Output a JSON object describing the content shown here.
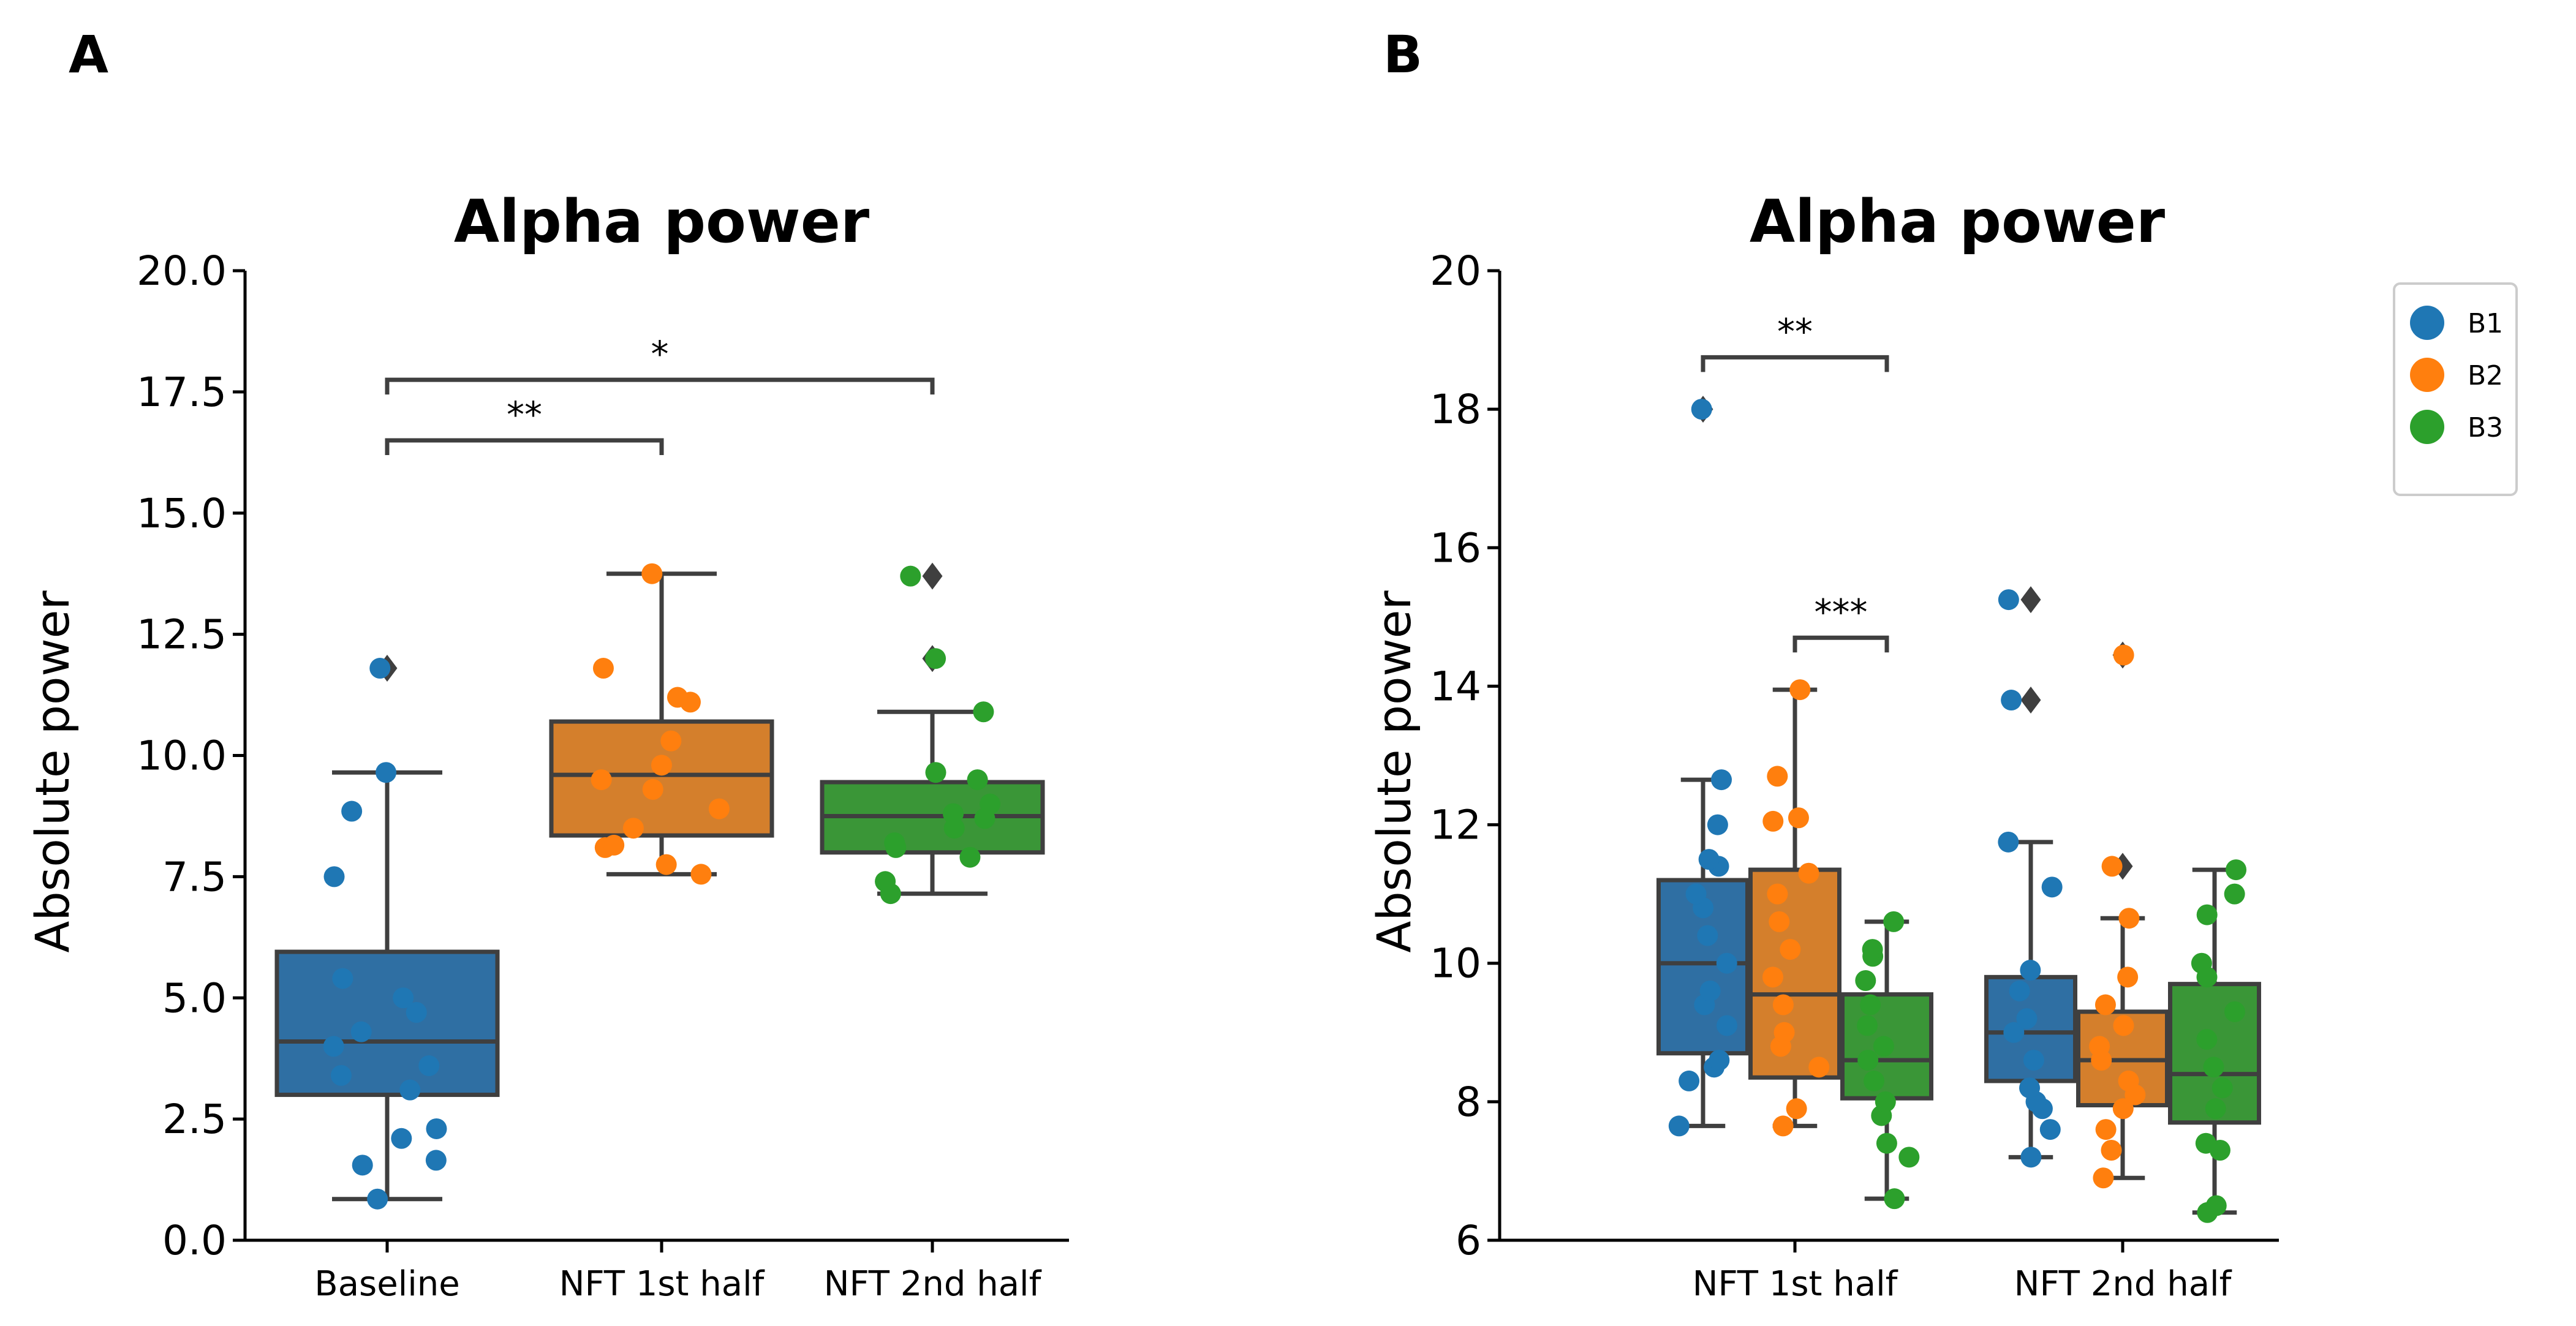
{
  "chart_data": [
    {
      "panel": "A",
      "type": "box",
      "title": "Alpha power",
      "ylabel": "Absolute power",
      "xlabel": "",
      "ylim": [
        0,
        20
      ],
      "yticks": [
        0,
        2.5,
        5,
        7.5,
        10,
        12.5,
        15,
        17.5,
        20
      ],
      "ytick_labels": [
        "0.0",
        "2.5",
        "5.0",
        "7.5",
        "10.0",
        "12.5",
        "15.0",
        "17.5",
        "20.0"
      ],
      "categories": [
        "Baseline",
        "NFT 1st half",
        "NFT 2nd half"
      ],
      "boxes": [
        {
          "category": "Baseline",
          "color": "#2f6fa3",
          "point_color": "#1f77b4",
          "q1": 3.0,
          "median": 4.1,
          "q3": 5.95,
          "whisker_low": 0.85,
          "whisker_high": 9.65,
          "outliers": [
            11.8
          ],
          "points": [
            0.85,
            1.55,
            1.65,
            2.1,
            2.3,
            3.1,
            3.4,
            3.6,
            4.0,
            4.3,
            4.7,
            5.0,
            5.4,
            7.5,
            8.85,
            9.65,
            11.8
          ]
        },
        {
          "category": "NFT 1st half",
          "color": "#d47f2c",
          "point_color": "#ff7f0e",
          "q1": 8.35,
          "median": 9.6,
          "q3": 10.7,
          "whisker_low": 7.55,
          "whisker_high": 13.75,
          "outliers": [],
          "points": [
            7.55,
            7.75,
            8.1,
            8.15,
            8.5,
            8.9,
            9.3,
            9.5,
            9.8,
            10.3,
            11.1,
            11.2,
            11.8,
            13.75
          ]
        },
        {
          "category": "NFT 2nd half",
          "color": "#3a9637",
          "point_color": "#2ca02c",
          "q1": 8.0,
          "median": 8.75,
          "q3": 9.45,
          "whisker_low": 7.15,
          "whisker_high": 10.9,
          "outliers": [
            12.0,
            13.7
          ],
          "points": [
            7.15,
            7.4,
            7.9,
            8.1,
            8.2,
            8.5,
            8.7,
            8.8,
            9.0,
            9.5,
            9.65,
            10.9,
            12.0,
            13.7
          ]
        }
      ],
      "significance": [
        {
          "from": "Baseline",
          "to": "NFT 1st half",
          "label": "**",
          "y": 16.5
        },
        {
          "from": "Baseline",
          "to": "NFT 2nd half",
          "label": "*",
          "y": 17.75
        }
      ]
    },
    {
      "panel": "B",
      "type": "box",
      "title": "Alpha power",
      "ylabel": "Absolute power",
      "xlabel": "",
      "ylim": [
        6,
        20
      ],
      "yticks": [
        6,
        8,
        10,
        12,
        14,
        16,
        18,
        20
      ],
      "ytick_labels": [
        "6",
        "8",
        "10",
        "12",
        "14",
        "16",
        "18",
        "20"
      ],
      "categories": [
        "NFT 1st half",
        "NFT 2nd half"
      ],
      "hue": [
        "B1",
        "B2",
        "B3"
      ],
      "hue_colors": [
        "#1f77b4",
        "#ff7f0e",
        "#2ca02c"
      ],
      "box_colors": [
        "#2f6fa3",
        "#d47f2c",
        "#3a9637"
      ],
      "boxes": [
        {
          "category": "NFT 1st half",
          "hue": "B1",
          "q1": 8.7,
          "median": 10.0,
          "q3": 11.2,
          "whisker_low": 7.65,
          "whisker_high": 12.65,
          "outliers": [
            18.0
          ],
          "points": [
            7.65,
            8.3,
            8.5,
            8.6,
            9.1,
            9.4,
            9.6,
            10.0,
            10.4,
            10.8,
            11.0,
            11.4,
            11.5,
            12.0,
            12.65,
            18.0
          ]
        },
        {
          "category": "NFT 1st half",
          "hue": "B2",
          "q1": 8.35,
          "median": 9.55,
          "q3": 11.35,
          "whisker_low": 7.65,
          "whisker_high": 13.95,
          "outliers": [],
          "points": [
            7.65,
            7.9,
            8.5,
            8.8,
            9.0,
            9.4,
            9.8,
            10.2,
            10.6,
            11.0,
            11.3,
            12.05,
            12.1,
            12.7,
            13.95
          ]
        },
        {
          "category": "NFT 1st half",
          "hue": "B3",
          "q1": 8.05,
          "median": 8.6,
          "q3": 9.55,
          "whisker_low": 6.6,
          "whisker_high": 10.6,
          "outliers": [],
          "points": [
            6.6,
            7.2,
            7.4,
            7.8,
            8.0,
            8.3,
            8.6,
            8.8,
            9.1,
            9.4,
            9.75,
            10.1,
            10.2,
            10.6
          ]
        },
        {
          "category": "NFT 2nd half",
          "hue": "B1",
          "q1": 8.3,
          "median": 9.0,
          "q3": 9.8,
          "whisker_low": 7.2,
          "whisker_high": 11.75,
          "outliers": [
            13.8,
            15.25
          ],
          "points": [
            7.2,
            7.6,
            7.9,
            8.0,
            8.2,
            8.6,
            9.0,
            9.2,
            9.6,
            9.9,
            11.1,
            11.75,
            13.8,
            15.25
          ]
        },
        {
          "category": "NFT 2nd half",
          "hue": "B2",
          "q1": 7.95,
          "median": 8.6,
          "q3": 9.3,
          "whisker_low": 6.9,
          "whisker_high": 10.65,
          "outliers": [
            11.4,
            14.45
          ],
          "points": [
            6.9,
            7.3,
            7.6,
            7.9,
            8.1,
            8.3,
            8.6,
            8.8,
            9.1,
            9.4,
            9.8,
            10.65,
            11.4,
            14.45
          ]
        },
        {
          "category": "NFT 2nd half",
          "hue": "B3",
          "q1": 7.7,
          "median": 8.4,
          "q3": 9.7,
          "whisker_low": 6.4,
          "whisker_high": 11.35,
          "outliers": [],
          "points": [
            6.4,
            6.5,
            7.3,
            7.4,
            7.9,
            8.2,
            8.5,
            8.9,
            9.3,
            9.8,
            10.0,
            10.7,
            11.0,
            11.35
          ]
        }
      ],
      "significance": [
        {
          "category": "NFT 1st half",
          "from_hue": "B1",
          "to_hue": "B3",
          "label": "**",
          "y": 18.75
        },
        {
          "category": "NFT 1st half",
          "from_hue": "B2",
          "to_hue": "B3",
          "label": "***",
          "y": 14.7
        }
      ],
      "legend": {
        "placement": "top-right",
        "entries": [
          "B1",
          "B2",
          "B3"
        ]
      }
    }
  ]
}
